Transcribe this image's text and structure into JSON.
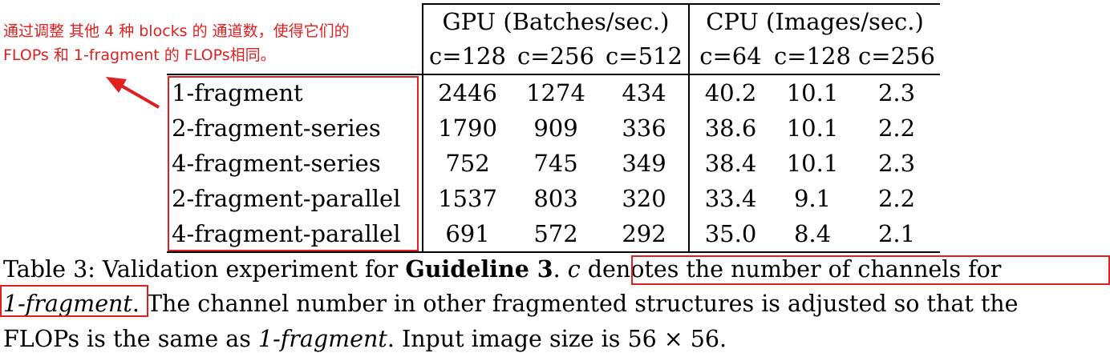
{
  "annotation": {
    "line1": "通过调整 其他 4 种 blocks 的 通道数，使得它们的",
    "line2": "FLOPs 和 1-fragment 的 FLOPs相同。",
    "color": "#e02020"
  },
  "table": {
    "group_headers": [
      "GPU (Batches/sec.)",
      "CPU (Images/sec.)"
    ],
    "sub_headers": [
      "c=128",
      "c=256",
      "c=512",
      "c=64",
      "c=128",
      "c=256"
    ],
    "rows": [
      {
        "name": "1-fragment",
        "values": [
          "2446",
          "1274",
          "434",
          "40.2",
          "10.1",
          "2.3"
        ]
      },
      {
        "name": "2-fragment-series",
        "values": [
          "1790",
          "909",
          "336",
          "38.6",
          "10.1",
          "2.2"
        ]
      },
      {
        "name": "4-fragment-series",
        "values": [
          "752",
          "745",
          "349",
          "38.4",
          "10.1",
          "2.3"
        ]
      },
      {
        "name": "2-fragment-parallel",
        "values": [
          "1537",
          "803",
          "320",
          "33.4",
          "9.1",
          "2.2"
        ]
      },
      {
        "name": "4-fragment-parallel",
        "values": [
          "691",
          "572",
          "292",
          "35.0",
          "8.4",
          "2.1"
        ]
      }
    ]
  },
  "caption": {
    "label": "Table 3: Validation experiment for ",
    "bold": "Guideline 3",
    "after_bold": ". ",
    "c_symbol": "c",
    "c_rest": " denotes the number of channels for",
    "italic_1": "1-fragment",
    "line2_rest": ". The channel number in other fragmented structures is adjusted so that the",
    "line3_a": "FLOPs is the same as ",
    "italic_2": "1-fragment",
    "line3_b": ". Input image size is 56 × 56."
  }
}
